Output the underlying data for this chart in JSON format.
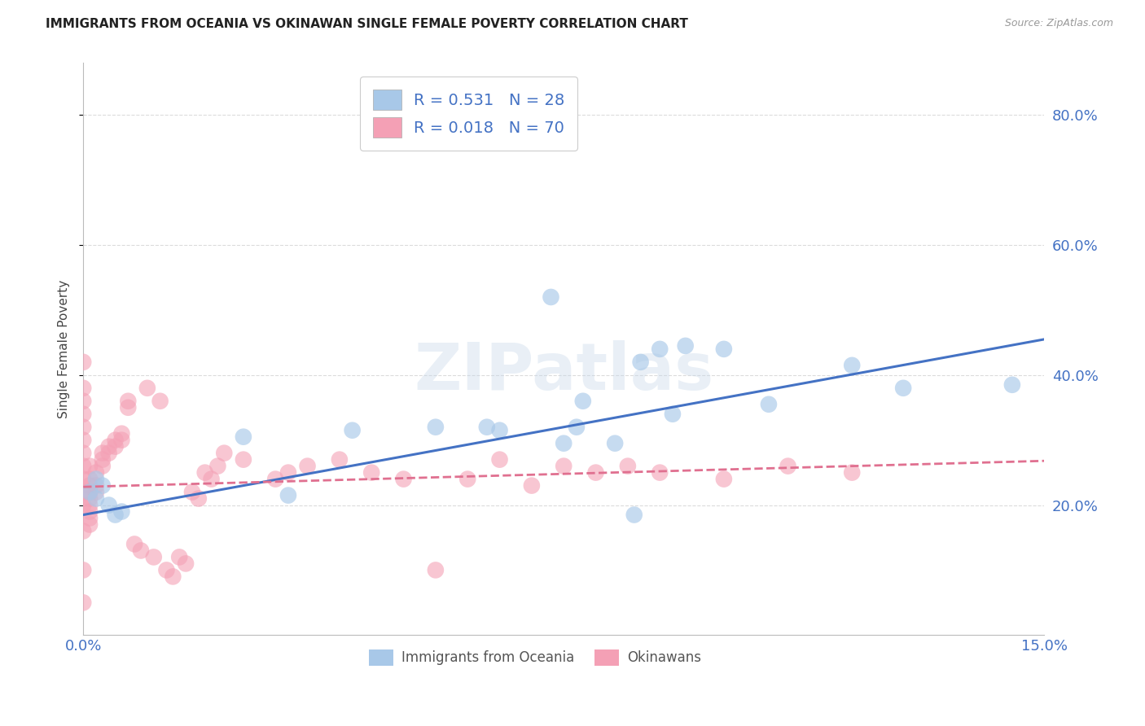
{
  "title": "IMMIGRANTS FROM OCEANIA VS OKINAWAN SINGLE FEMALE POVERTY CORRELATION CHART",
  "source": "Source: ZipAtlas.com",
  "xlabel_ticks": [
    "0.0%",
    "15.0%"
  ],
  "ylabel_ticks": [
    "20.0%",
    "40.0%",
    "60.0%",
    "80.0%"
  ],
  "ylabel_label": "Single Female Poverty",
  "legend_label1": "Immigrants from Oceania",
  "legend_label2": "Okinawans",
  "legend_r1": "R = 0.531",
  "legend_n1": "N = 28",
  "legend_r2": "R = 0.018",
  "legend_n2": "N = 70",
  "xlim": [
    0.0,
    0.15
  ],
  "ylim": [
    0.0,
    0.88
  ],
  "blue_color": "#a8c8e8",
  "pink_color": "#f4a0b5",
  "blue_line_color": "#4472c4",
  "pink_line_color": "#e07090",
  "watermark": "ZIPatlas",
  "blue_scatter_x": [
    0.001,
    0.002,
    0.002,
    0.003,
    0.004,
    0.005,
    0.006,
    0.025,
    0.032,
    0.042,
    0.055,
    0.063,
    0.065,
    0.073,
    0.075,
    0.077,
    0.078,
    0.083,
    0.086,
    0.087,
    0.09,
    0.092,
    0.094,
    0.1,
    0.107,
    0.12,
    0.128,
    0.145
  ],
  "blue_scatter_y": [
    0.22,
    0.24,
    0.21,
    0.23,
    0.2,
    0.185,
    0.19,
    0.305,
    0.215,
    0.315,
    0.32,
    0.32,
    0.315,
    0.52,
    0.295,
    0.32,
    0.36,
    0.295,
    0.185,
    0.42,
    0.44,
    0.34,
    0.445,
    0.44,
    0.355,
    0.415,
    0.38,
    0.385
  ],
  "pink_scatter_x": [
    0.0,
    0.0,
    0.0,
    0.0,
    0.0,
    0.0,
    0.0,
    0.0,
    0.0,
    0.0,
    0.0,
    0.0,
    0.0,
    0.0,
    0.001,
    0.001,
    0.001,
    0.001,
    0.001,
    0.001,
    0.001,
    0.001,
    0.001,
    0.002,
    0.002,
    0.002,
    0.003,
    0.003,
    0.003,
    0.004,
    0.004,
    0.005,
    0.005,
    0.006,
    0.006,
    0.007,
    0.007,
    0.008,
    0.009,
    0.01,
    0.011,
    0.012,
    0.013,
    0.014,
    0.015,
    0.016,
    0.017,
    0.018,
    0.019,
    0.02,
    0.021,
    0.022,
    0.025,
    0.03,
    0.032,
    0.035,
    0.04,
    0.045,
    0.05,
    0.055,
    0.06,
    0.065,
    0.07,
    0.075,
    0.08,
    0.085,
    0.09,
    0.1,
    0.11,
    0.12
  ],
  "pink_scatter_y": [
    0.42,
    0.38,
    0.36,
    0.34,
    0.32,
    0.3,
    0.28,
    0.26,
    0.24,
    0.22,
    0.2,
    0.16,
    0.1,
    0.05,
    0.22,
    0.21,
    0.2,
    0.19,
    0.18,
    0.24,
    0.23,
    0.17,
    0.26,
    0.25,
    0.23,
    0.22,
    0.28,
    0.27,
    0.26,
    0.29,
    0.28,
    0.3,
    0.29,
    0.31,
    0.3,
    0.35,
    0.36,
    0.14,
    0.13,
    0.38,
    0.12,
    0.36,
    0.1,
    0.09,
    0.12,
    0.11,
    0.22,
    0.21,
    0.25,
    0.24,
    0.26,
    0.28,
    0.27,
    0.24,
    0.25,
    0.26,
    0.27,
    0.25,
    0.24,
    0.1,
    0.24,
    0.27,
    0.23,
    0.26,
    0.25,
    0.26,
    0.25,
    0.24,
    0.26,
    0.25
  ],
  "blue_line_x": [
    0.0,
    0.15
  ],
  "blue_line_y": [
    0.185,
    0.455
  ],
  "pink_line_x": [
    0.0,
    0.15
  ],
  "pink_line_y": [
    0.228,
    0.268
  ],
  "grid_color": "#d8d8d8",
  "title_fontsize": 11,
  "axis_tick_color": "#4472c4",
  "bg_color": "#ffffff"
}
